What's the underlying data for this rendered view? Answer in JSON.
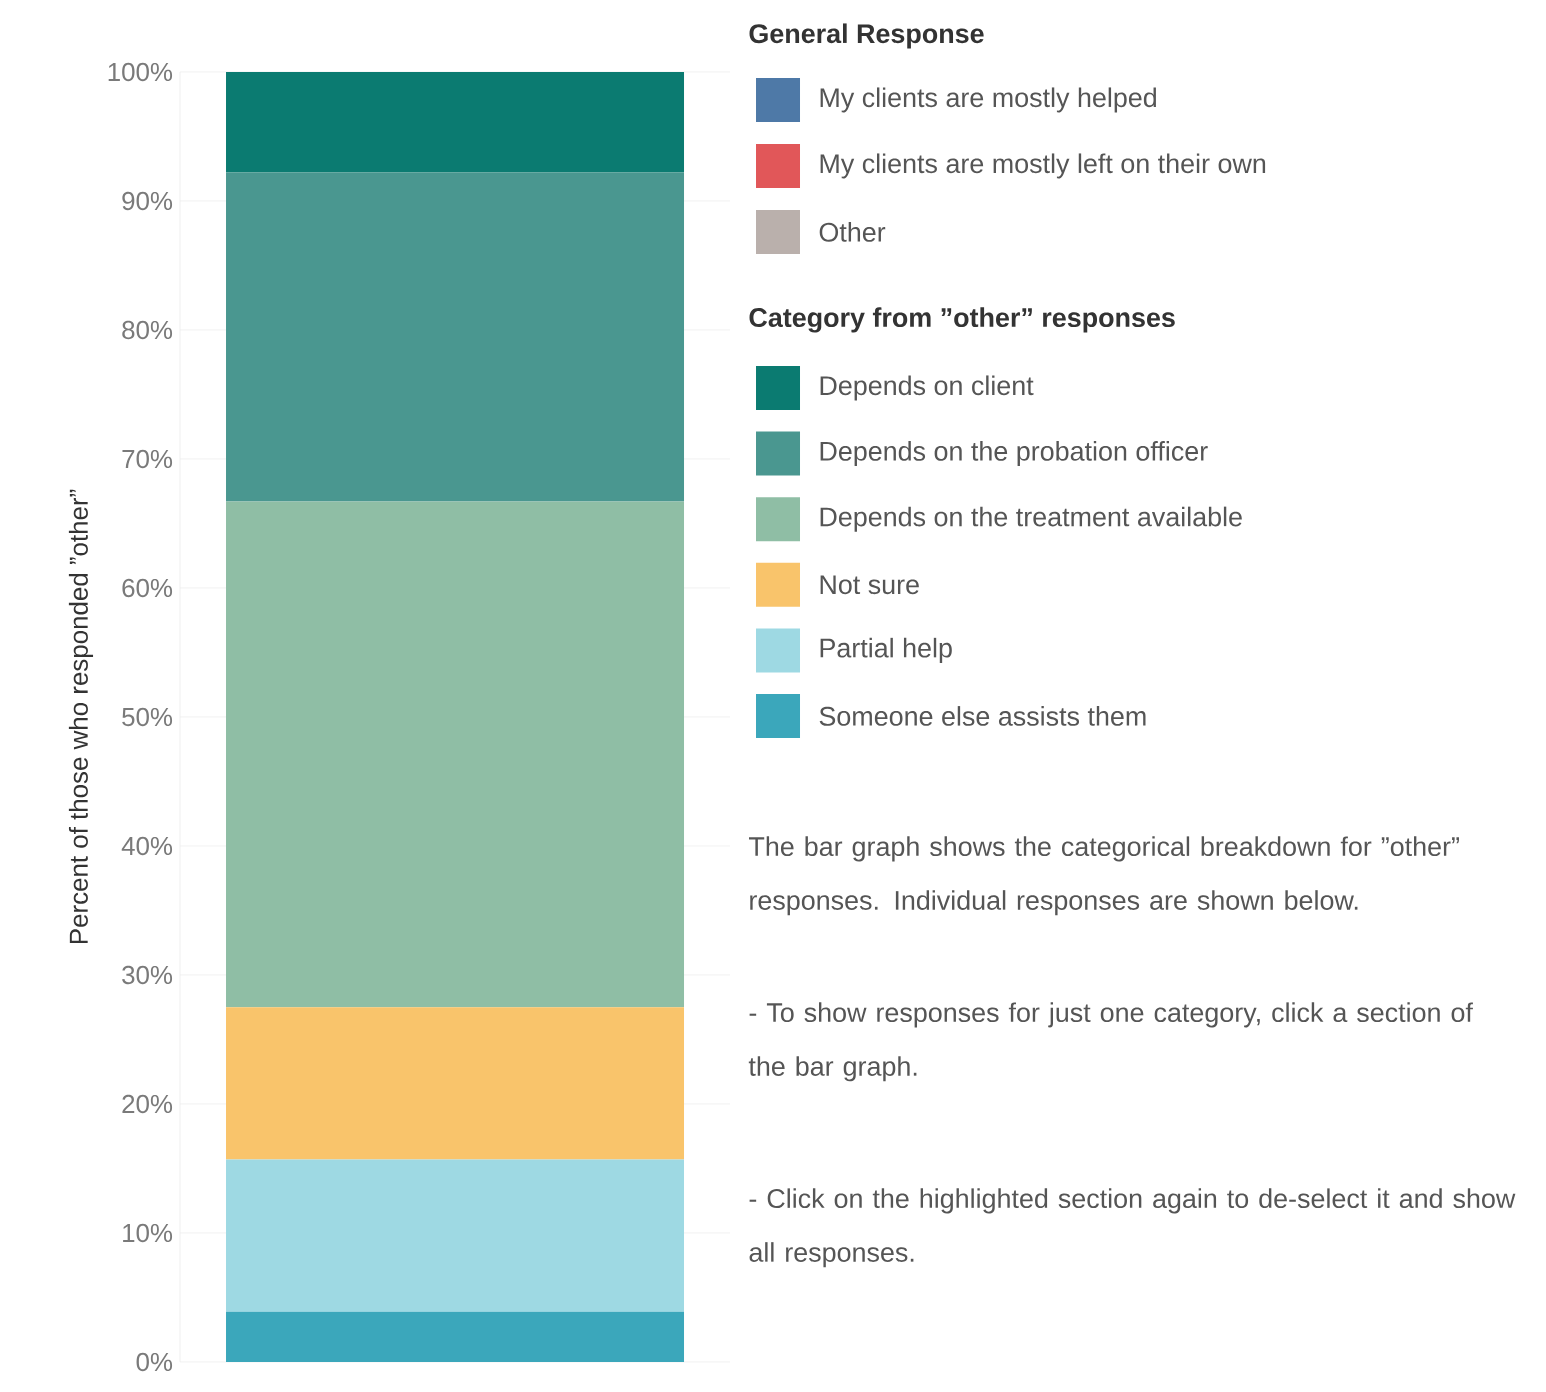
{
  "chart_data": {
    "type": "bar",
    "stacked": true,
    "ylabel": "Percent of those who responded ”other”",
    "legend_title": "General Response",
    "categories": [
      null
    ],
    "series": [
      {
        "name": "My clients are mostly helped",
        "color": "#4e79a7",
        "values": [
          null
        ]
      },
      {
        "name": "My clients are mostly left on their own",
        "color": "#e15759",
        "values": [
          null
        ]
      },
      {
        "name": "Other",
        "color": "#bab0ac",
        "values": [
          null
        ]
      },
      {
        "name": "Someone else assists them",
        "color": "#3ba7bb",
        "values": [
          3.9
        ]
      },
      {
        "name": "Partial help",
        "color": "#9ed9e3",
        "values": [
          11.8
        ]
      },
      {
        "name": "Not sure",
        "color": "#f9c46b",
        "values": [
          11.8
        ]
      },
      {
        "name": "Depends on the treatment available",
        "color": "#8fbea5",
        "values": [
          39.2
        ]
      },
      {
        "name": "Depends on the probation officer",
        "color": "#4a9790",
        "values": [
          25.5
        ]
      },
      {
        "name": "Depends on client",
        "color": "#0b7b71",
        "values": [
          7.8
        ]
      }
    ],
    "ylim": [
      0,
      100
    ],
    "yticks": [
      {
        "value": 0,
        "label": "0%"
      },
      {
        "value": 10,
        "label": "10%"
      },
      {
        "value": 20,
        "label": "20%"
      },
      {
        "value": 30,
        "label": "30%"
      },
      {
        "value": 40,
        "label": "40%"
      },
      {
        "value": 50,
        "label": "50%"
      },
      {
        "value": 60,
        "label": "60%"
      },
      {
        "value": 70,
        "label": "70%"
      },
      {
        "value": 80,
        "label": "80%"
      },
      {
        "value": 90,
        "label": "90%"
      },
      {
        "value": 100,
        "label": "100%"
      }
    ],
    "grid": "y",
    "legend": "right",
    "annotations": [
      "Category from ”other” responses",
      "The bar graph shows the categorical breakdown for ”other” responses. Individual responses are shown below.",
      "- To show responses for just one category, click a section of the bar graph.",
      "- Click on the highlighted section again to de-select it and show all responses."
    ]
  }
}
